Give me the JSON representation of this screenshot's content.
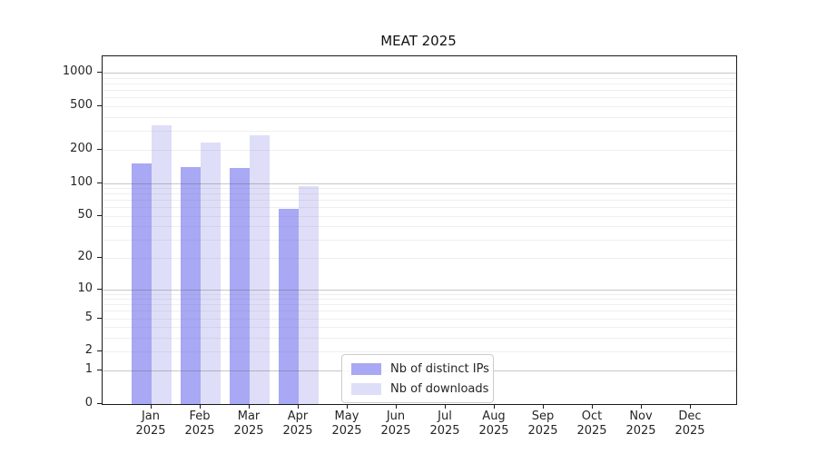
{
  "title": "MEAT 2025",
  "chart_data": {
    "type": "bar",
    "title": "MEAT 2025",
    "yscale": "log1p",
    "grid": "horizontal",
    "categories": [
      "Jan",
      "Feb",
      "Mar",
      "Apr",
      "May",
      "Jun",
      "Jul",
      "Aug",
      "Sep",
      "Oct",
      "Nov",
      "Dec"
    ],
    "year_label": "2025",
    "series": [
      {
        "key": "ips",
        "name": "Nb of distinct IPs",
        "color": "#a8a8f4",
        "values": [
          150,
          140,
          138,
          58,
          0,
          0,
          0,
          0,
          0,
          0,
          0,
          0
        ]
      },
      {
        "key": "downloads",
        "name": "Nb of downloads",
        "color": "#dedef8",
        "values": [
          335,
          233,
          272,
          93,
          0,
          0,
          0,
          0,
          0,
          0,
          0,
          0
        ]
      }
    ],
    "yticks": [
      0,
      1,
      2,
      5,
      10,
      20,
      50,
      100,
      200,
      500,
      1000
    ],
    "major_gridlines": [
      1,
      10,
      100,
      1000
    ],
    "minor_gridlines": [
      2,
      3,
      4,
      5,
      6,
      7,
      8,
      9,
      20,
      30,
      40,
      50,
      60,
      70,
      80,
      90,
      200,
      300,
      400,
      500,
      600,
      700,
      800,
      900
    ],
    "ylim": [
      0,
      1420
    ],
    "legend_position": "lower-center"
  }
}
